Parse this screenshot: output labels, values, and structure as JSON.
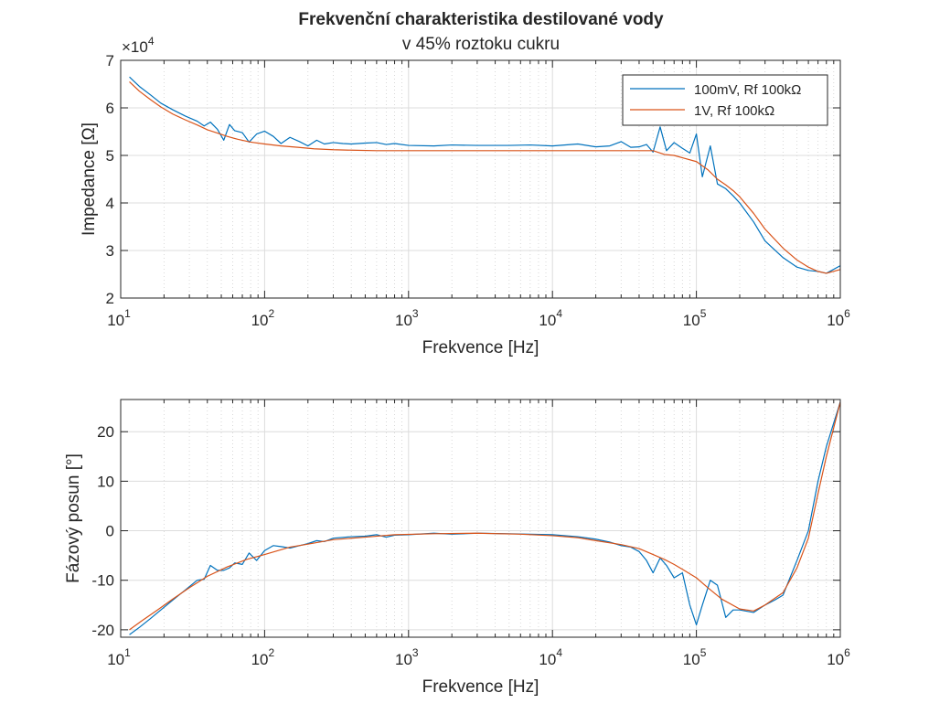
{
  "chart_data": [
    {
      "type": "line",
      "title": "Frekvenční charakteristika destilované vody",
      "subtitle": "v 45% roztoku cukru",
      "xlabel": "Frekvence [Hz]",
      "ylabel": "Impedance [Ω]",
      "xscale": "log",
      "xlim": [
        10,
        1000000
      ],
      "ylim": [
        20000,
        70000
      ],
      "y_multiplier": "×10^4",
      "xticks": [
        10,
        100,
        1000,
        10000,
        100000,
        1000000
      ],
      "xtick_labels": [
        {
          "base": "10",
          "exp": "1"
        },
        {
          "base": "10",
          "exp": "2"
        },
        {
          "base": "10",
          "exp": "3"
        },
        {
          "base": "10",
          "exp": "4"
        },
        {
          "base": "10",
          "exp": "5"
        },
        {
          "base": "10",
          "exp": "6"
        }
      ],
      "yticks": [
        20000,
        30000,
        40000,
        50000,
        60000,
        70000
      ],
      "ytick_labels": [
        "2",
        "3",
        "4",
        "5",
        "6",
        "7"
      ],
      "grid": true,
      "legend_position": "top-right",
      "series": [
        {
          "name": "100mV, Rf 100kΩ",
          "color": "#0072BD",
          "x": [
            11.5,
            13.5,
            16,
            19,
            23,
            28,
            34,
            38,
            42,
            47,
            52,
            57,
            62,
            70,
            78,
            88,
            100,
            115,
            130,
            150,
            175,
            200,
            230,
            260,
            300,
            350,
            400,
            500,
            600,
            700,
            800,
            1000,
            1500,
            2000,
            3000,
            5000,
            7000,
            10000,
            15000,
            20000,
            25000,
            30000,
            35000,
            40000,
            45000,
            50000,
            56000,
            62000,
            70000,
            80000,
            90000,
            100000,
            110000,
            125000,
            140000,
            160000,
            180000,
            200000,
            250000,
            300000,
            400000,
            500000,
            600000,
            700000,
            800000,
            1000000
          ],
          "y": [
            66500,
            64500,
            62800,
            61000,
            59600,
            58300,
            57200,
            56200,
            57000,
            55500,
            53200,
            56500,
            55200,
            54800,
            52800,
            54500,
            55100,
            54000,
            52500,
            53800,
            52900,
            52000,
            53200,
            52400,
            52700,
            52500,
            52400,
            52600,
            52700,
            52300,
            52500,
            52100,
            52000,
            52200,
            52100,
            52100,
            52200,
            52000,
            52400,
            51800,
            52000,
            52900,
            51700,
            51800,
            52300,
            50700,
            56000,
            51000,
            52700,
            51500,
            50500,
            54500,
            45500,
            52000,
            44000,
            43000,
            41500,
            40000,
            36000,
            32000,
            28500,
            26500,
            25800,
            25600,
            25200,
            26800
          ]
        },
        {
          "name": "1V, Rf 100kΩ",
          "color": "#D95319",
          "x": [
            11.5,
            13.5,
            16,
            19,
            23,
            28,
            34,
            40,
            47,
            55,
            65,
            80,
            100,
            130,
            170,
            220,
            300,
            400,
            600,
            1000,
            2000,
            4000,
            7000,
            10000,
            20000,
            35000,
            50000,
            60000,
            70000,
            80000,
            100000,
            120000,
            140000,
            160000,
            180000,
            200000,
            250000,
            300000,
            400000,
            500000,
            600000,
            700000,
            800000,
            1000000
          ],
          "y": [
            65500,
            63500,
            61800,
            60200,
            58700,
            57500,
            56400,
            55400,
            54700,
            54000,
            53400,
            52800,
            52400,
            52000,
            51700,
            51400,
            51200,
            51100,
            51000,
            51000,
            51000,
            51000,
            51000,
            51000,
            51000,
            51000,
            51000,
            50200,
            50000,
            49500,
            48700,
            47000,
            45000,
            43800,
            42600,
            41300,
            37800,
            34500,
            30500,
            28000,
            26500,
            25600,
            25200,
            26000
          ]
        }
      ]
    },
    {
      "type": "line",
      "title": "",
      "xlabel": "Frekvence [Hz]",
      "ylabel": "Fázový posun [°]",
      "xscale": "log",
      "xlim": [
        10,
        1000000
      ],
      "ylim": [
        -21.5,
        26.5
      ],
      "xticks": [
        10,
        100,
        1000,
        10000,
        100000,
        1000000
      ],
      "xtick_labels": [
        {
          "base": "10",
          "exp": "1"
        },
        {
          "base": "10",
          "exp": "2"
        },
        {
          "base": "10",
          "exp": "3"
        },
        {
          "base": "10",
          "exp": "4"
        },
        {
          "base": "10",
          "exp": "5"
        },
        {
          "base": "10",
          "exp": "6"
        }
      ],
      "yticks": [
        -20,
        -10,
        0,
        10,
        20
      ],
      "ytick_labels": [
        "-20",
        "-10",
        "0",
        "10",
        "20"
      ],
      "grid": true,
      "series": [
        {
          "name": "100mV, Rf 100kΩ",
          "color": "#0072BD",
          "x": [
            11.5,
            13.5,
            16,
            19,
            23,
            28,
            34,
            38,
            42,
            47,
            52,
            57,
            62,
            70,
            78,
            88,
            100,
            115,
            130,
            150,
            175,
            200,
            230,
            260,
            300,
            400,
            500,
            600,
            700,
            800,
            1000,
            1500,
            2000,
            3000,
            5000,
            7000,
            10000,
            15000,
            20000,
            25000,
            30000,
            35000,
            40000,
            45000,
            50000,
            56000,
            62000,
            70000,
            80000,
            90000,
            100000,
            110000,
            125000,
            140000,
            160000,
            180000,
            200000,
            250000,
            300000,
            350000,
            400000,
            500000,
            600000,
            700000,
            800000,
            1000000
          ],
          "y": [
            -21,
            -19.5,
            -17.8,
            -16,
            -14,
            -12,
            -10,
            -9.8,
            -7,
            -8,
            -8,
            -7.5,
            -6.5,
            -6.8,
            -4.5,
            -6,
            -4,
            -3,
            -3.2,
            -3.5,
            -3,
            -2.6,
            -2,
            -2.2,
            -1.5,
            -1.2,
            -1.1,
            -0.8,
            -1.3,
            -0.9,
            -0.8,
            -0.5,
            -0.7,
            -0.5,
            -0.6,
            -0.7,
            -0.8,
            -1.2,
            -1.7,
            -2.3,
            -3,
            -3.3,
            -4.2,
            -6,
            -8.5,
            -5.5,
            -7,
            -9.5,
            -8.5,
            -15,
            -19,
            -15,
            -10,
            -11,
            -17.5,
            -16,
            -16,
            -16.5,
            -15,
            -14,
            -13,
            -6,
            0,
            10,
            17,
            26
          ]
        },
        {
          "name": "1V, Rf 100kΩ",
          "color": "#D95319",
          "x": [
            11.5,
            14,
            18,
            23,
            30,
            40,
            55,
            75,
            100,
            150,
            200,
            300,
            500,
            800,
            1500,
            3000,
            6000,
            10000,
            15000,
            20000,
            30000,
            40000,
            50000,
            60000,
            70000,
            80000,
            100000,
            120000,
            150000,
            200000,
            250000,
            300000,
            400000,
            500000,
            600000,
            700000,
            800000,
            1000000
          ],
          "y": [
            -20,
            -18.2,
            -16,
            -13.8,
            -11.5,
            -9.2,
            -7.3,
            -5.8,
            -4.8,
            -3.3,
            -2.7,
            -1.8,
            -1.3,
            -0.8,
            -0.6,
            -0.5,
            -0.7,
            -1,
            -1.4,
            -2,
            -2.8,
            -3.6,
            -4.8,
            -5.8,
            -6.8,
            -7.8,
            -9.5,
            -11.5,
            -13.8,
            -15.8,
            -16.2,
            -15,
            -12.5,
            -7.5,
            -1.5,
            7.5,
            15,
            26
          ]
        }
      ]
    }
  ]
}
